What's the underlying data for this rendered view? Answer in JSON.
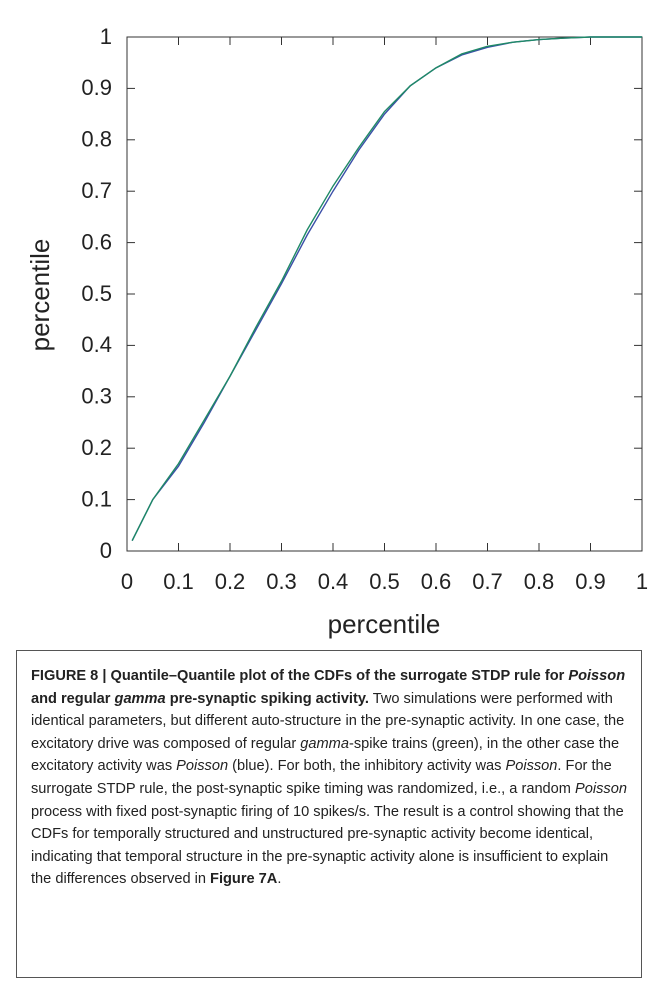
{
  "chart_data": {
    "type": "line",
    "xlabel": "percentile",
    "ylabel": "percentile",
    "x": [
      0.01,
      0.05,
      0.1,
      0.15,
      0.2,
      0.25,
      0.3,
      0.35,
      0.4,
      0.45,
      0.5,
      0.55,
      0.6,
      0.65,
      0.7,
      0.75,
      0.8,
      0.85,
      0.9,
      1
    ],
    "series": [
      {
        "color": "#3b4fa8",
        "values": [
          0.02,
          0.1,
          0.165,
          0.25,
          0.34,
          0.43,
          0.52,
          0.615,
          0.7,
          0.78,
          0.85,
          0.905,
          0.94,
          0.965,
          0.98,
          0.99,
          0.995,
          0.998,
          1,
          1
        ]
      },
      {
        "color": "#1f8a66",
        "values": [
          0.02,
          0.1,
          0.17,
          0.255,
          0.34,
          0.435,
          0.525,
          0.625,
          0.71,
          0.785,
          0.855,
          0.905,
          0.94,
          0.967,
          0.982,
          0.99,
          0.995,
          0.998,
          1,
          1
        ]
      }
    ],
    "xlim": [
      0,
      1
    ],
    "ylim": [
      0,
      1
    ],
    "xticks": [
      0,
      0.1,
      0.2,
      0.3,
      0.4,
      0.5,
      0.6,
      0.7,
      0.8,
      0.9,
      1
    ],
    "yticks": [
      0,
      0.1,
      0.2,
      0.3,
      0.4,
      0.5,
      0.6,
      0.7,
      0.8,
      0.9,
      1
    ]
  },
  "caption": {
    "runs": [
      {
        "text": "FIGURE 8 | Quantile–Quantile plot of the CDFs of the surrogate STDP rule for ",
        "bold": true
      },
      {
        "text": "Poisson",
        "bold": true,
        "italic": true
      },
      {
        "text": " and regular ",
        "bold": true
      },
      {
        "text": "gamma",
        "bold": true,
        "italic": true
      },
      {
        "text": " pre-synaptic spiking activity.",
        "bold": true
      },
      {
        "text": " Two simulations were performed with identical parameters, but different auto-structure in the pre-synaptic activity. In one case, the excitatory drive was composed of regular "
      },
      {
        "text": "gamma",
        "italic": true
      },
      {
        "text": "-spike trains (green), in the other case the excitatory activity was "
      },
      {
        "text": "Poisson",
        "italic": true
      },
      {
        "text": " (blue). For both, the inhibitory activity was "
      },
      {
        "text": "Poisson",
        "italic": true
      },
      {
        "text": ". For the surrogate STDP rule, the post-synaptic spike timing was randomized, i.e., a random "
      },
      {
        "text": "Poisson",
        "italic": true
      },
      {
        "text": " process with fixed post-synaptic firing of 10 spikes/s. The result is a control showing that the CDFs for temporally structured and unstructured pre-synaptic activity become identical, indicating that temporal structure in the pre-synaptic activity alone is insufficient to explain the differences observed in "
      },
      {
        "text": "Figure 7A",
        "bold": true
      },
      {
        "text": "."
      }
    ]
  }
}
